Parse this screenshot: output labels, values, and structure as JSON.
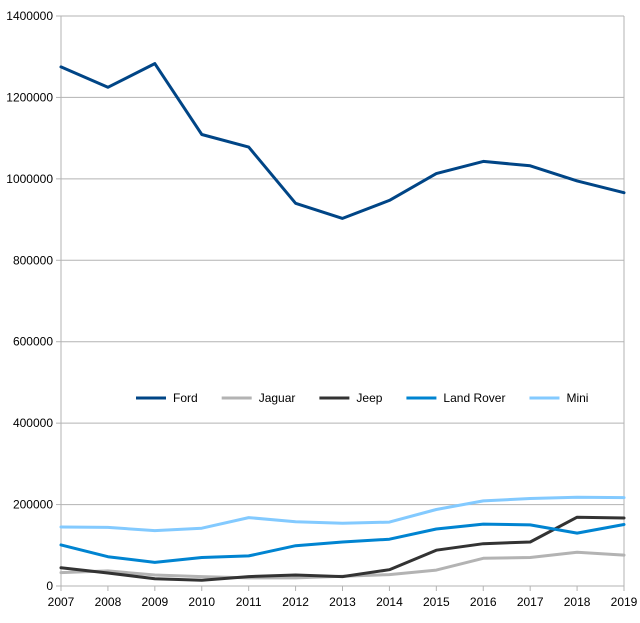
{
  "chart_data": {
    "type": "line",
    "title": "",
    "xlabel": "",
    "ylabel": "",
    "x": [
      "2007",
      "2008",
      "2009",
      "2010",
      "2011",
      "2012",
      "2013",
      "2014",
      "2015",
      "2016",
      "2017",
      "2018",
      "2019"
    ],
    "ylim": [
      0,
      1400000
    ],
    "yticks": [
      "0",
      "200000",
      "400000",
      "600000",
      "800000",
      "1000000",
      "1200000",
      "1400000"
    ],
    "grid": "horizontal",
    "legend_position": "center",
    "series": [
      {
        "name": "Ford",
        "color": "#004586",
        "values": [
          1275000,
          1225000,
          1283000,
          1109000,
          1078000,
          940000,
          903000,
          947000,
          1013000,
          1043000,
          1032000,
          995000,
          966000
        ]
      },
      {
        "name": "Jaguar",
        "color": "#b3b3b3",
        "values": [
          33000,
          37000,
          27000,
          23000,
          20000,
          20000,
          24000,
          28000,
          39000,
          68000,
          70000,
          83000,
          76000
        ]
      },
      {
        "name": "Jeep",
        "color": "#333333",
        "values": [
          45000,
          32000,
          18000,
          14000,
          23000,
          27000,
          23000,
          40000,
          88000,
          104000,
          108000,
          169000,
          167000
        ]
      },
      {
        "name": "Land Rover",
        "color": "#0084d1",
        "values": [
          101000,
          72000,
          58000,
          70000,
          74000,
          99000,
          108000,
          115000,
          140000,
          152000,
          150000,
          130000,
          151000
        ]
      },
      {
        "name": "Mini",
        "color": "#83caff",
        "values": [
          145000,
          144000,
          136000,
          142000,
          168000,
          158000,
          154000,
          157000,
          188000,
          209000,
          215000,
          218000,
          217000
        ]
      }
    ]
  }
}
